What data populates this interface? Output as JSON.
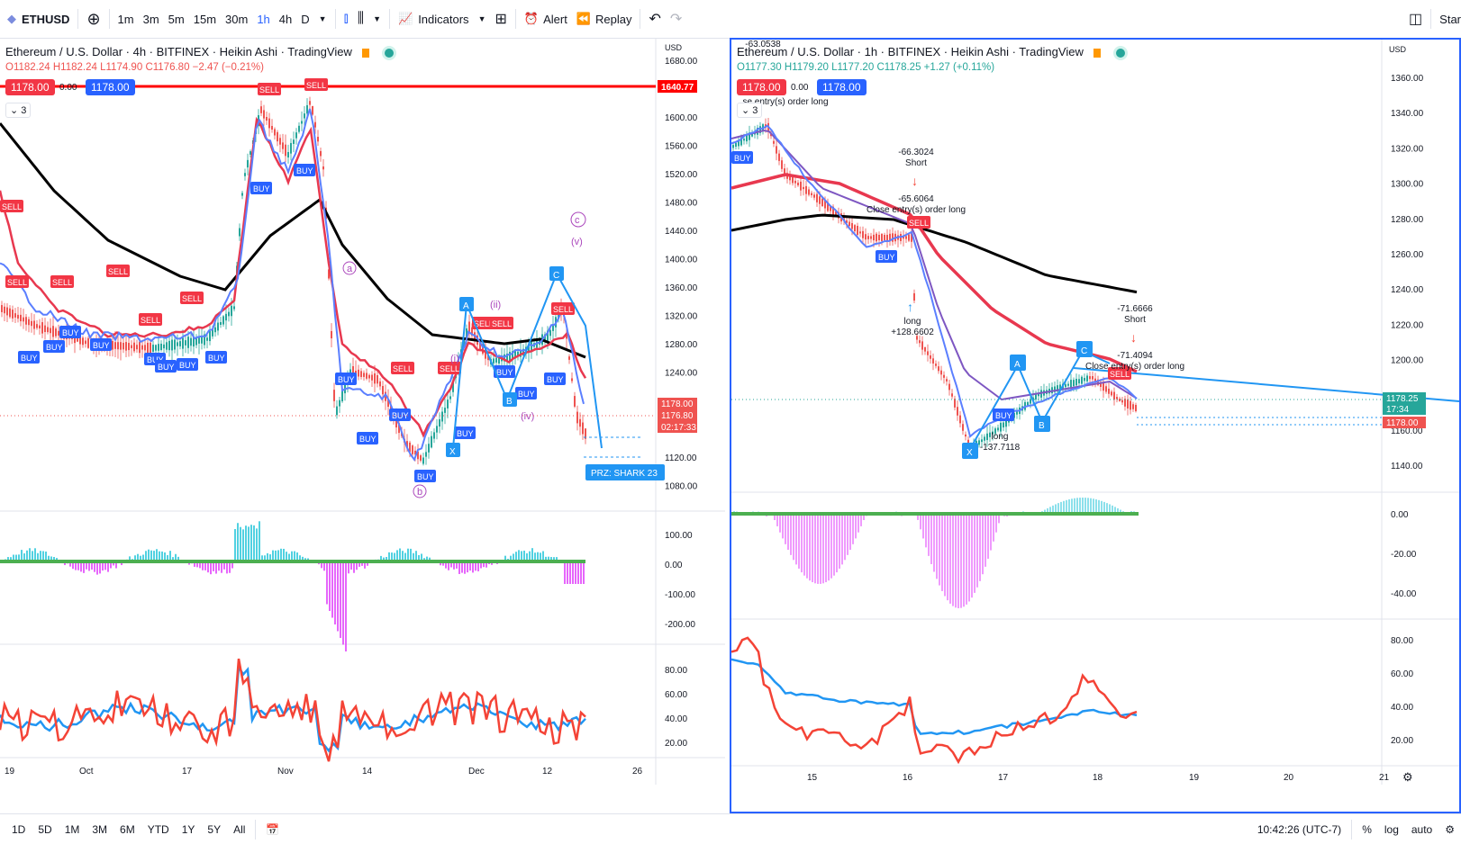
{
  "toolbar": {
    "symbol": "ETHUSD",
    "intervals": [
      "1m",
      "3m",
      "5m",
      "15m",
      "30m",
      "1h",
      "4h",
      "D"
    ],
    "active_interval": "1h",
    "indicators_label": "Indicators",
    "alert_label": "Alert",
    "replay_label": "Replay",
    "start_label": "Star"
  },
  "left_chart": {
    "title": "Ethereum / U.S. Dollar · 4h · BITFINEX · Heikin Ashi · TradingView",
    "ohlc": {
      "o": "O1182.24",
      "h": "H1182.24",
      "l": "L1174.90",
      "c": "C1176.80",
      "chg": "−2.47 (−0.21%)"
    },
    "sell_price": "1178.00",
    "spread": "0.00",
    "buy_price": "1178.00",
    "study_count": "3",
    "currency": "USD",
    "price_ticks": [
      "1680.00",
      "1640.00",
      "1600.00",
      "1560.00",
      "1520.00",
      "1480.00",
      "1440.00",
      "1400.00",
      "1360.00",
      "1320.00",
      "1280.00",
      "1240.00",
      "1200.00",
      "1160.00",
      "1120.00",
      "1080.00"
    ],
    "hline_label": "1640.77",
    "last_price": "1178.00",
    "last_price2": "1176.80",
    "countdown": "02:17:33",
    "osc_ticks": [
      "100.00",
      "0.00",
      "-100.00",
      "-200.00"
    ],
    "rsi_ticks": [
      "80.00",
      "60.00",
      "40.00",
      "20.00"
    ],
    "time_ticks": [
      "19",
      "Oct",
      "17",
      "Nov",
      "14",
      "Dec",
      "12",
      "26"
    ],
    "prz_label": "PRZ: SHARK 23",
    "pattern_labels": [
      "A",
      "B",
      "C",
      "X"
    ],
    "wave_labels": [
      "a",
      "b",
      "c",
      "(v)",
      "(i)",
      "(ii)",
      "(iv)"
    ],
    "sell_tags": [
      "SELL"
    ],
    "buy_tags": [
      "BUY"
    ]
  },
  "right_chart": {
    "title": "Ethereum / U.S. Dollar · 1h · BITFINEX · Heikin Ashi · TradingView",
    "ohlc": {
      "o": "O1177.30",
      "h": "H1179.20",
      "l": "L1177.20",
      "c": "C1178.25",
      "chg": "+1.27 (+0.11%)"
    },
    "sell_price": "1178.00",
    "spread": "0.00",
    "buy_price": "1178.00",
    "study_count": "3",
    "currency": "USD",
    "price_ticks": [
      "1360.00",
      "1340.00",
      "1320.00",
      "1300.00",
      "1280.00",
      "1260.00",
      "1240.00",
      "1220.00",
      "1200.00",
      "1180.00",
      "1160.00",
      "1140.00"
    ],
    "last_price": "1178.25",
    "countdown": "17:34",
    "last_price2": "1178.00",
    "osc_ticks": [
      "0.00",
      "-20.00",
      "-40.00"
    ],
    "rsi_ticks": [
      "80.00",
      "60.00",
      "40.00",
      "20.00"
    ],
    "time_ticks": [
      "15",
      "16",
      "17",
      "18",
      "19",
      "20",
      "21"
    ],
    "annotations": {
      "top_value": "-63.0538",
      "close_top": "se entry(s) order long",
      "short1_value": "-66.3024",
      "short1_label": "Short",
      "close1_value": "-65.6064",
      "close1_label": "Close entry(s) order long",
      "long1_label": "long",
      "long1_value": "+128.6602",
      "long2_label": "long",
      "long2_value": "-137.7118",
      "short2_value": "-71.6666",
      "short2_label": "Short",
      "close2_value": "-71.4094",
      "close2_label": "Close entry(s) order long"
    },
    "pattern_labels": [
      "A",
      "B",
      "C",
      "X"
    ]
  },
  "bottombar": {
    "ranges": [
      "1D",
      "5D",
      "1M",
      "3M",
      "6M",
      "YTD",
      "1Y",
      "5Y",
      "All"
    ],
    "clock": "10:42:26 (UTC-7)",
    "percent": "%",
    "log": "log",
    "auto": "auto"
  },
  "colors": {
    "accent": "#2962ff",
    "up": "#26a69a",
    "down": "#ef5350",
    "ma_black": "#000000",
    "ma_red": "#e8384f",
    "ma_blue": "#5b7fff"
  }
}
